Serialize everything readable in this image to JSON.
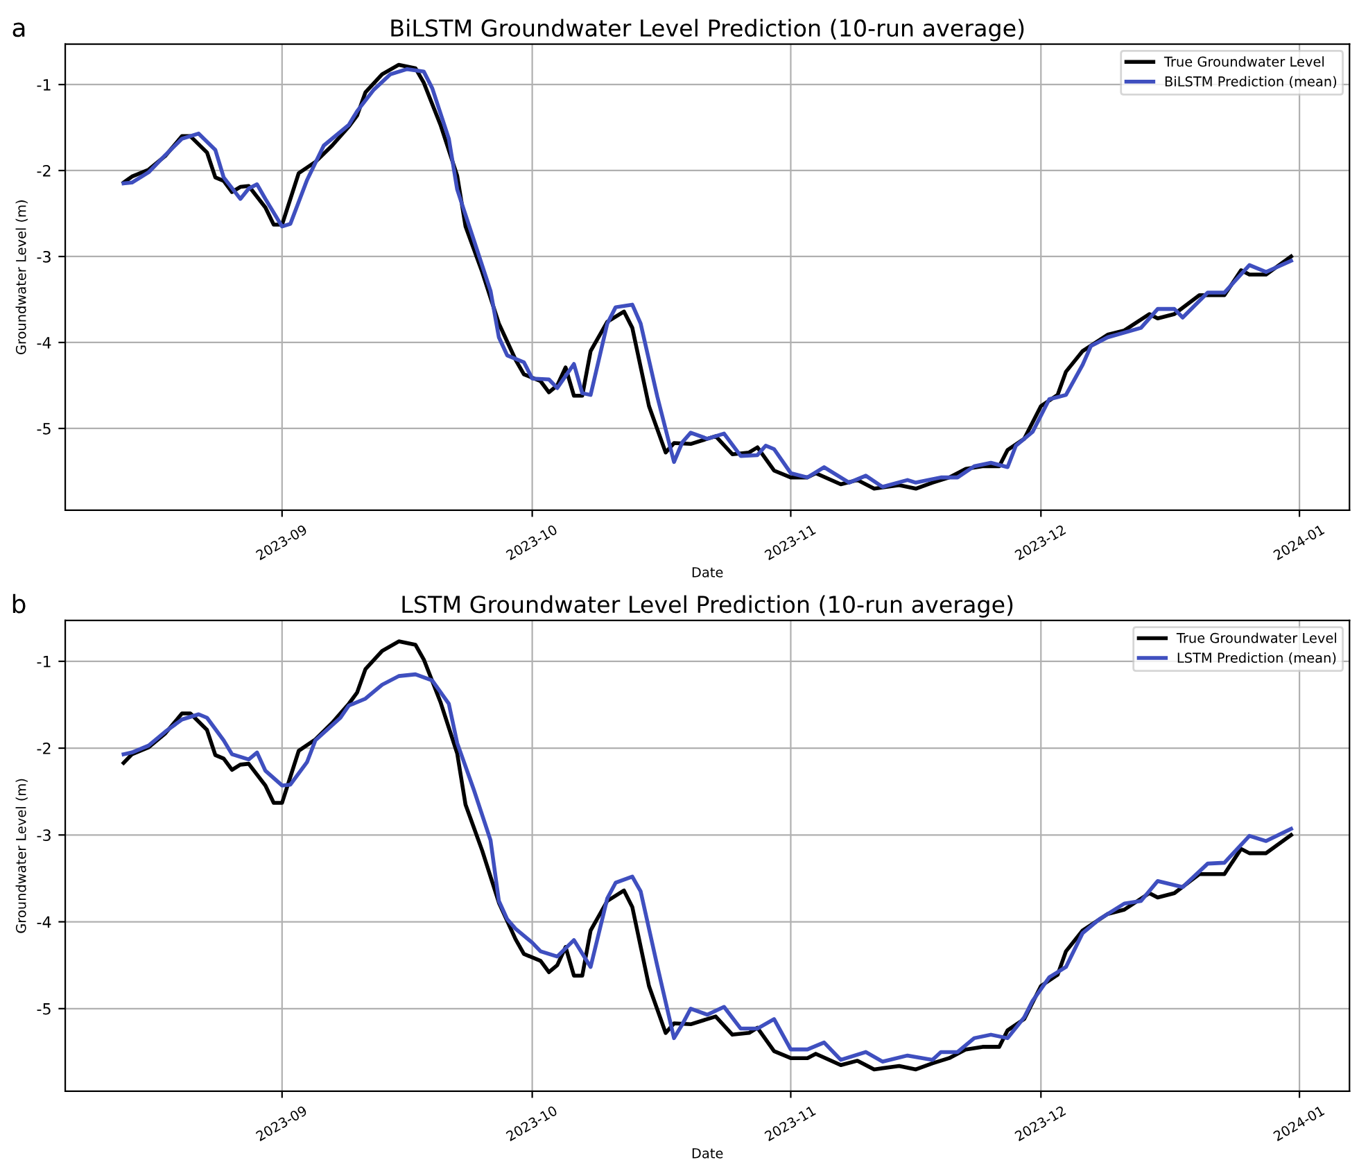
{
  "chart_data": [
    {
      "type": "line",
      "title": "BiLSTM Groundwater Level Prediction (10-run average)",
      "xlabel": "Date",
      "ylabel": "Groundwater Level (m)",
      "annotations": [
        "a"
      ],
      "xlim": [
        "2023-08-06",
        "2024-01-07"
      ],
      "ylim": [
        -5.95,
        -0.53
      ],
      "yticks": [
        -5,
        -4,
        -3,
        -2,
        -1
      ],
      "xticks": [
        {
          "value": "2023-09-01",
          "label": "2023-09"
        },
        {
          "value": "2023-10-01",
          "label": "2023-10"
        },
        {
          "value": "2023-11-01",
          "label": "2023-11"
        },
        {
          "value": "2023-12-01",
          "label": "2023-12"
        },
        {
          "value": "2024-01-01",
          "label": "2024-01"
        }
      ],
      "grid": true,
      "legend": "top right",
      "series": [
        {
          "name": "True Groundwater Level",
          "color": "#000000",
          "x": [
            "2023-08-13",
            "2023-08-14",
            "2023-08-16",
            "2023-08-18",
            "2023-08-20",
            "2023-08-21",
            "2023-08-23",
            "2023-08-24",
            "2023-08-25",
            "2023-08-26",
            "2023-08-27",
            "2023-08-28",
            "2023-08-30",
            "2023-08-31",
            "2023-09-01",
            "2023-09-02",
            "2023-09-03",
            "2023-09-05",
            "2023-09-07",
            "2023-09-09",
            "2023-09-10",
            "2023-09-11",
            "2023-09-13",
            "2023-09-15",
            "2023-09-17",
            "2023-09-18",
            "2023-09-20",
            "2023-09-22",
            "2023-09-23",
            "2023-09-25",
            "2023-09-27",
            "2023-09-28",
            "2023-09-29",
            "2023-09-30",
            "2023-10-02",
            "2023-10-03",
            "2023-10-04",
            "2023-10-05",
            "2023-10-06",
            "2023-10-07",
            "2023-10-08",
            "2023-10-10",
            "2023-10-12",
            "2023-10-13",
            "2023-10-15",
            "2023-10-17",
            "2023-10-18",
            "2023-10-20",
            "2023-10-23",
            "2023-10-25",
            "2023-10-27",
            "2023-10-28",
            "2023-10-30",
            "2023-11-01",
            "2023-11-03",
            "2023-11-04",
            "2023-11-07",
            "2023-11-09",
            "2023-11-11",
            "2023-11-14",
            "2023-11-16",
            "2023-11-18",
            "2023-11-20",
            "2023-11-22",
            "2023-11-24",
            "2023-11-26",
            "2023-11-27",
            "2023-11-29",
            "2023-12-01",
            "2023-12-03",
            "2023-12-04",
            "2023-12-06",
            "2023-12-09",
            "2023-12-11",
            "2023-12-14",
            "2023-12-15",
            "2023-12-17",
            "2023-12-20",
            "2023-12-23",
            "2023-12-25",
            "2023-12-26",
            "2023-12-28",
            "2023-12-31"
          ],
          "values": [
            -2.14,
            -2.07,
            -1.99,
            -1.83,
            -1.6,
            -1.6,
            -1.79,
            -2.08,
            -2.12,
            -2.25,
            -2.19,
            -2.18,
            -2.43,
            -2.63,
            -2.63,
            -2.33,
            -2.03,
            -1.9,
            -1.71,
            -1.49,
            -1.36,
            -1.09,
            -0.88,
            -0.77,
            -0.81,
            -0.98,
            -1.47,
            -2.06,
            -2.65,
            -3.18,
            -3.78,
            -3.99,
            -4.2,
            -4.37,
            -4.45,
            -4.58,
            -4.5,
            -4.29,
            -4.62,
            -4.62,
            -4.1,
            -3.76,
            -3.64,
            -3.83,
            -4.74,
            -5.28,
            -5.17,
            -5.18,
            -5.09,
            -5.3,
            -5.28,
            -5.22,
            -5.49,
            -5.57,
            -5.57,
            -5.52,
            -5.65,
            -5.6,
            -5.7,
            -5.66,
            -5.7,
            -5.63,
            -5.57,
            -5.47,
            -5.44,
            -5.44,
            -5.25,
            -5.12,
            -4.74,
            -4.61,
            -4.34,
            -4.1,
            -3.91,
            -3.86,
            -3.67,
            -3.72,
            -3.67,
            -3.45,
            -3.45,
            -3.16,
            -3.21,
            -3.21,
            -3.0
          ]
        },
        {
          "name": "BiLSTM Prediction (mean)",
          "color": "#3f4fbf",
          "x": [
            "2023-08-13",
            "2023-08-14",
            "2023-08-16",
            "2023-08-18",
            "2023-08-20",
            "2023-08-22",
            "2023-08-24",
            "2023-08-25",
            "2023-08-27",
            "2023-08-28",
            "2023-08-29",
            "2023-08-30",
            "2023-09-01",
            "2023-09-02",
            "2023-09-04",
            "2023-09-06",
            "2023-09-09",
            "2023-09-10",
            "2023-09-12",
            "2023-09-14",
            "2023-09-16",
            "2023-09-18",
            "2023-09-19",
            "2023-09-21",
            "2023-09-22",
            "2023-09-24",
            "2023-09-26",
            "2023-09-27",
            "2023-09-28",
            "2023-09-30",
            "2023-10-01",
            "2023-10-03",
            "2023-10-04",
            "2023-10-06",
            "2023-10-07",
            "2023-10-08",
            "2023-10-10",
            "2023-10-11",
            "2023-10-13",
            "2023-10-14",
            "2023-10-16",
            "2023-10-18",
            "2023-10-19",
            "2023-10-20",
            "2023-10-22",
            "2023-10-24",
            "2023-10-26",
            "2023-10-28",
            "2023-10-29",
            "2023-10-30",
            "2023-11-01",
            "2023-11-03",
            "2023-11-05",
            "2023-11-08",
            "2023-11-10",
            "2023-11-12",
            "2023-11-15",
            "2023-11-16",
            "2023-11-19",
            "2023-11-21",
            "2023-11-23",
            "2023-11-25",
            "2023-11-27",
            "2023-11-28",
            "2023-11-30",
            "2023-12-02",
            "2023-12-04",
            "2023-12-06",
            "2023-12-07",
            "2023-12-09",
            "2023-12-13",
            "2023-12-15",
            "2023-12-17",
            "2023-12-18",
            "2023-12-21",
            "2023-12-23",
            "2023-12-26",
            "2023-12-28",
            "2023-12-31"
          ],
          "values": [
            -2.15,
            -2.14,
            -2.02,
            -1.82,
            -1.63,
            -1.57,
            -1.76,
            -2.08,
            -2.33,
            -2.21,
            -2.16,
            -2.33,
            -2.65,
            -2.62,
            -2.11,
            -1.71,
            -1.47,
            -1.31,
            -1.06,
            -0.88,
            -0.82,
            -0.85,
            -1.04,
            -1.63,
            -2.22,
            -2.81,
            -3.4,
            -3.94,
            -4.15,
            -4.23,
            -4.42,
            -4.43,
            -4.53,
            -4.25,
            -4.59,
            -4.61,
            -3.78,
            -3.59,
            -3.56,
            -3.78,
            -4.63,
            -5.39,
            -5.16,
            -5.05,
            -5.12,
            -5.06,
            -5.32,
            -5.31,
            -5.2,
            -5.24,
            -5.52,
            -5.57,
            -5.45,
            -5.63,
            -5.55,
            -5.68,
            -5.6,
            -5.63,
            -5.57,
            -5.57,
            -5.44,
            -5.4,
            -5.45,
            -5.2,
            -5.04,
            -4.66,
            -4.61,
            -4.26,
            -4.04,
            -3.94,
            -3.83,
            -3.61,
            -3.61,
            -3.71,
            -3.42,
            -3.42,
            -3.1,
            -3.18,
            -3.05
          ]
        }
      ]
    },
    {
      "type": "line",
      "title": "LSTM Groundwater Level Prediction (10-run average)",
      "xlabel": "Date",
      "ylabel": "Groundwater Level (m)",
      "annotations": [
        "b"
      ],
      "xlim": [
        "2023-08-06",
        "2024-01-07"
      ],
      "ylim": [
        -5.95,
        -0.53
      ],
      "yticks": [
        -5,
        -4,
        -3,
        -2,
        -1
      ],
      "xticks": [
        {
          "value": "2023-09-01",
          "label": "2023-09"
        },
        {
          "value": "2023-10-01",
          "label": "2023-10"
        },
        {
          "value": "2023-11-01",
          "label": "2023-11"
        },
        {
          "value": "2023-12-01",
          "label": "2023-12"
        },
        {
          "value": "2024-01-01",
          "label": "2024-01"
        }
      ],
      "grid": true,
      "legend": "top right",
      "series": [
        {
          "name": "True Groundwater Level",
          "color": "#000000",
          "x": [
            "2023-08-13",
            "2023-08-14",
            "2023-08-16",
            "2023-08-18",
            "2023-08-20",
            "2023-08-21",
            "2023-08-23",
            "2023-08-24",
            "2023-08-25",
            "2023-08-26",
            "2023-08-27",
            "2023-08-28",
            "2023-08-30",
            "2023-08-31",
            "2023-09-01",
            "2023-09-02",
            "2023-09-03",
            "2023-09-05",
            "2023-09-07",
            "2023-09-09",
            "2023-09-10",
            "2023-09-11",
            "2023-09-13",
            "2023-09-15",
            "2023-09-17",
            "2023-09-18",
            "2023-09-20",
            "2023-09-22",
            "2023-09-23",
            "2023-09-25",
            "2023-09-27",
            "2023-09-28",
            "2023-09-29",
            "2023-09-30",
            "2023-10-02",
            "2023-10-03",
            "2023-10-04",
            "2023-10-05",
            "2023-10-06",
            "2023-10-07",
            "2023-10-08",
            "2023-10-10",
            "2023-10-12",
            "2023-10-13",
            "2023-10-15",
            "2023-10-17",
            "2023-10-18",
            "2023-10-20",
            "2023-10-23",
            "2023-10-25",
            "2023-10-27",
            "2023-10-28",
            "2023-10-30",
            "2023-11-01",
            "2023-11-03",
            "2023-11-04",
            "2023-11-07",
            "2023-11-09",
            "2023-11-11",
            "2023-11-14",
            "2023-11-16",
            "2023-11-18",
            "2023-11-20",
            "2023-11-22",
            "2023-11-24",
            "2023-11-26",
            "2023-11-27",
            "2023-11-29",
            "2023-12-01",
            "2023-12-03",
            "2023-12-04",
            "2023-12-06",
            "2023-12-09",
            "2023-12-11",
            "2023-12-14",
            "2023-12-15",
            "2023-12-17",
            "2023-12-20",
            "2023-12-23",
            "2023-12-25",
            "2023-12-26",
            "2023-12-28",
            "2023-12-31"
          ],
          "values": [
            -2.17,
            -2.07,
            -1.99,
            -1.83,
            -1.6,
            -1.6,
            -1.79,
            -2.08,
            -2.12,
            -2.25,
            -2.19,
            -2.18,
            -2.43,
            -2.63,
            -2.63,
            -2.33,
            -2.03,
            -1.9,
            -1.71,
            -1.49,
            -1.36,
            -1.09,
            -0.88,
            -0.77,
            -0.81,
            -0.98,
            -1.47,
            -2.06,
            -2.65,
            -3.18,
            -3.78,
            -3.99,
            -4.2,
            -4.37,
            -4.45,
            -4.58,
            -4.5,
            -4.29,
            -4.62,
            -4.62,
            -4.1,
            -3.76,
            -3.64,
            -3.83,
            -4.74,
            -5.28,
            -5.17,
            -5.18,
            -5.09,
            -5.3,
            -5.28,
            -5.22,
            -5.49,
            -5.57,
            -5.57,
            -5.52,
            -5.65,
            -5.6,
            -5.7,
            -5.66,
            -5.7,
            -5.63,
            -5.57,
            -5.47,
            -5.44,
            -5.44,
            -5.25,
            -5.12,
            -4.74,
            -4.61,
            -4.34,
            -4.1,
            -3.91,
            -3.86,
            -3.67,
            -3.72,
            -3.67,
            -3.45,
            -3.45,
            -3.16,
            -3.21,
            -3.21,
            -3.0
          ]
        },
        {
          "name": "LSTM Prediction (mean)",
          "color": "#3f4fbf",
          "x": [
            "2023-08-13",
            "2023-08-14",
            "2023-08-16",
            "2023-08-18",
            "2023-08-20",
            "2023-08-22",
            "2023-08-23",
            "2023-08-25",
            "2023-08-26",
            "2023-08-28",
            "2023-08-29",
            "2023-08-30",
            "2023-09-01",
            "2023-09-02",
            "2023-09-04",
            "2023-09-05",
            "2023-09-08",
            "2023-09-09",
            "2023-09-11",
            "2023-09-13",
            "2023-09-15",
            "2023-09-17",
            "2023-09-19",
            "2023-09-21",
            "2023-09-22",
            "2023-09-24",
            "2023-09-26",
            "2023-09-27",
            "2023-09-28",
            "2023-09-29",
            "2023-10-01",
            "2023-10-02",
            "2023-10-04",
            "2023-10-06",
            "2023-10-08",
            "2023-10-10",
            "2023-10-11",
            "2023-10-13",
            "2023-10-14",
            "2023-10-16",
            "2023-10-18",
            "2023-10-19",
            "2023-10-20",
            "2023-10-22",
            "2023-10-24",
            "2023-10-26",
            "2023-10-28",
            "2023-10-30",
            "2023-11-01",
            "2023-11-03",
            "2023-11-05",
            "2023-11-07",
            "2023-11-10",
            "2023-11-12",
            "2023-11-15",
            "2023-11-18",
            "2023-11-19",
            "2023-11-21",
            "2023-11-23",
            "2023-11-25",
            "2023-11-27",
            "2023-11-29",
            "2023-11-30",
            "2023-12-02",
            "2023-12-04",
            "2023-12-06",
            "2023-12-08",
            "2023-12-11",
            "2023-12-13",
            "2023-12-15",
            "2023-12-18",
            "2023-12-21",
            "2023-12-23",
            "2023-12-26",
            "2023-12-28",
            "2023-12-31"
          ],
          "values": [
            -2.07,
            -2.05,
            -1.97,
            -1.81,
            -1.67,
            -1.61,
            -1.65,
            -1.91,
            -2.07,
            -2.13,
            -2.05,
            -2.26,
            -2.43,
            -2.42,
            -2.16,
            -1.91,
            -1.65,
            -1.51,
            -1.43,
            -1.27,
            -1.17,
            -1.15,
            -1.22,
            -1.49,
            -1.94,
            -2.48,
            -3.06,
            -3.76,
            -3.97,
            -4.08,
            -4.24,
            -4.34,
            -4.4,
            -4.21,
            -4.52,
            -3.73,
            -3.55,
            -3.48,
            -3.65,
            -4.51,
            -5.34,
            -5.18,
            -5.0,
            -5.07,
            -4.98,
            -5.23,
            -5.23,
            -5.12,
            -5.47,
            -5.47,
            -5.39,
            -5.59,
            -5.5,
            -5.61,
            -5.54,
            -5.59,
            -5.5,
            -5.5,
            -5.34,
            -5.3,
            -5.34,
            -5.1,
            -4.91,
            -4.64,
            -4.52,
            -4.13,
            -3.97,
            -3.79,
            -3.76,
            -3.53,
            -3.6,
            -3.33,
            -3.32,
            -3.01,
            -3.07,
            -2.93
          ]
        }
      ]
    }
  ]
}
